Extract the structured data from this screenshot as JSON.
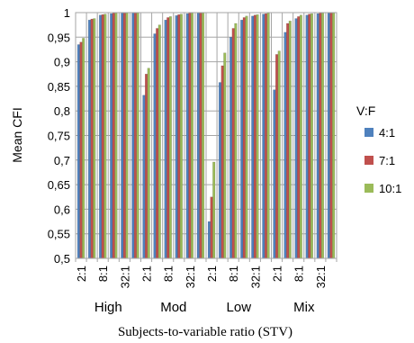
{
  "chart_data": {
    "type": "bar",
    "title": "",
    "ylabel": "Mean CFI",
    "xlabel": "Subjects-to-variable ratio (STV)",
    "ylim": [
      0.5,
      1
    ],
    "yticks": [
      "0,5",
      "0,55",
      "0,6",
      "0,65",
      "0,7",
      "0,75",
      "0,8",
      "0,85",
      "0,9",
      "0,95",
      "1"
    ],
    "grid": true,
    "legend_title": "V:F",
    "legend_position": "right",
    "groups": [
      {
        "name": "High",
        "categories": [
          "2:1",
          "",
          "8:1",
          "",
          "32:1",
          ""
        ]
      },
      {
        "name": "Mod",
        "categories": [
          "2:1",
          "",
          "8:1",
          "",
          "32:1",
          ""
        ]
      },
      {
        "name": "Low",
        "categories": [
          "2:1",
          "",
          "8:1",
          "",
          "32:1",
          ""
        ]
      },
      {
        "name": "Mix",
        "categories": [
          "2:1",
          "",
          "8:1",
          "",
          "32:1",
          ""
        ]
      }
    ],
    "series": [
      {
        "name": "4:1",
        "color": "#4f81bd",
        "values": [
          0.935,
          0.985,
          0.995,
          0.998,
          0.999,
          0.999,
          0.832,
          0.957,
          0.985,
          0.994,
          0.998,
          0.999,
          0.575,
          0.858,
          0.95,
          0.985,
          0.993,
          0.997,
          0.843,
          0.96,
          0.988,
          0.995,
          0.998,
          0.999
        ]
      },
      {
        "name": "7:1",
        "color": "#c0504d",
        "values": [
          0.94,
          0.987,
          0.996,
          0.999,
          0.999,
          0.999,
          0.875,
          0.968,
          0.99,
          0.996,
          0.999,
          0.999,
          0.625,
          0.892,
          0.968,
          0.99,
          0.995,
          0.998,
          0.915,
          0.978,
          0.992,
          0.997,
          0.999,
          0.999
        ]
      },
      {
        "name": "10:1",
        "color": "#9bbb59",
        "values": [
          0.948,
          0.988,
          0.997,
          0.999,
          0.999,
          0.999,
          0.887,
          0.975,
          0.992,
          0.997,
          0.999,
          0.999,
          0.696,
          0.918,
          0.978,
          0.993,
          0.996,
          0.999,
          0.922,
          0.983,
          0.995,
          0.998,
          0.999,
          0.999
        ]
      }
    ]
  }
}
